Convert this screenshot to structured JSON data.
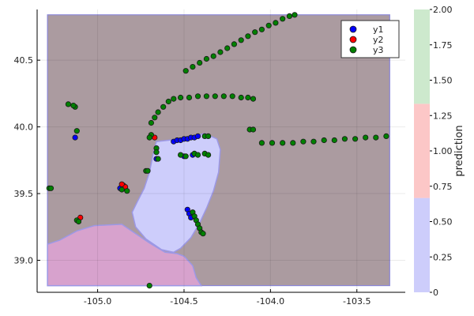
{
  "chart_data": {
    "type": "scatter",
    "title": "",
    "xlabel": "",
    "ylabel": "",
    "xlim": [
      -105.35,
      -103.22
    ],
    "ylim": [
      38.76,
      40.88
    ],
    "x_ticks": [
      {
        "v": -105.0,
        "label": "-105.0"
      },
      {
        "v": -104.5,
        "label": "-104.5"
      },
      {
        "v": -104.0,
        "label": "-104.0"
      },
      {
        "v": -103.5,
        "label": "-103.5"
      }
    ],
    "y_ticks": [
      {
        "v": 39.0,
        "label": "39.0"
      },
      {
        "v": 39.5,
        "label": "39.5"
      },
      {
        "v": 40.0,
        "label": "40.0"
      },
      {
        "v": 40.5,
        "label": "40.5"
      }
    ],
    "grid": true,
    "legend": "top-right",
    "decision_regions": {
      "bounds": {
        "x": [
          -105.29,
          -103.31
        ],
        "y": [
          38.81,
          40.84
        ]
      },
      "background_class": 1,
      "regions": [
        {
          "class": 0,
          "label": "blue region",
          "polygon": [
            [
              -104.66,
              39.89
            ],
            [
              -104.52,
              39.91
            ],
            [
              -104.38,
              39.95
            ],
            [
              -104.31,
              39.91
            ],
            [
              -104.29,
              39.83
            ],
            [
              -104.3,
              39.66
            ],
            [
              -104.33,
              39.52
            ],
            [
              -104.37,
              39.39
            ],
            [
              -104.41,
              39.28
            ],
            [
              -104.46,
              39.17
            ],
            [
              -104.52,
              39.09
            ],
            [
              -104.56,
              39.06
            ],
            [
              -104.63,
              39.08
            ],
            [
              -104.72,
              39.16
            ],
            [
              -104.78,
              39.25
            ],
            [
              -104.8,
              39.36
            ],
            [
              -104.77,
              39.44
            ],
            [
              -104.73,
              39.54
            ],
            [
              -104.7,
              39.66
            ],
            [
              -104.68,
              39.79
            ]
          ]
        },
        {
          "class": 2,
          "label": "pink region",
          "polygon": [
            [
              -105.29,
              38.81
            ],
            [
              -105.29,
              39.12
            ],
            [
              -105.22,
              39.15
            ],
            [
              -105.12,
              39.22
            ],
            [
              -105.02,
              39.26
            ],
            [
              -104.86,
              39.27
            ],
            [
              -104.78,
              39.2
            ],
            [
              -104.7,
              39.13
            ],
            [
              -104.61,
              39.06
            ],
            [
              -104.54,
              39.05
            ],
            [
              -104.5,
              39.03
            ],
            [
              -104.45,
              38.96
            ],
            [
              -104.43,
              38.87
            ],
            [
              -104.4,
              38.81
            ]
          ]
        }
      ]
    },
    "colors": {
      "y1": "#0000ff",
      "y2": "#ff0000",
      "y3": "#008000",
      "region0": "#cdcdfb",
      "region1": "#ab9ba0",
      "region2": "#d7a2cd"
    },
    "series": [
      {
        "name": "y1",
        "class": 0,
        "points": [
          [
            -104.56,
            39.89
          ],
          [
            -104.54,
            39.9
          ],
          [
            -104.52,
            39.9
          ],
          [
            -104.5,
            39.91
          ],
          [
            -104.48,
            39.91
          ],
          [
            -104.46,
            39.92
          ],
          [
            -104.44,
            39.92
          ],
          [
            -104.42,
            39.93
          ],
          [
            -104.66,
            39.76
          ],
          [
            -104.48,
            39.38
          ],
          [
            -104.47,
            39.35
          ],
          [
            -104.46,
            39.32
          ],
          [
            -104.87,
            39.54
          ],
          [
            -105.13,
            39.92
          ],
          [
            -104.45,
            39.79
          ],
          [
            -104.5,
            39.78
          ]
        ]
      },
      {
        "name": "y2",
        "class": 1,
        "points": [
          [
            -104.85,
            39.56
          ],
          [
            -104.84,
            39.55
          ],
          [
            -104.67,
            39.92
          ],
          [
            -105.1,
            39.32
          ],
          [
            -104.86,
            39.57
          ]
        ]
      },
      {
        "name": "y3",
        "class": 2,
        "points": [
          [
            -104.49,
            40.42
          ],
          [
            -104.45,
            40.45
          ],
          [
            -104.41,
            40.48
          ],
          [
            -104.37,
            40.51
          ],
          [
            -104.33,
            40.53
          ],
          [
            -104.29,
            40.56
          ],
          [
            -104.25,
            40.59
          ],
          [
            -104.21,
            40.62
          ],
          [
            -104.17,
            40.65
          ],
          [
            -104.13,
            40.68
          ],
          [
            -104.09,
            40.71
          ],
          [
            -104.05,
            40.73
          ],
          [
            -104.01,
            40.76
          ],
          [
            -103.97,
            40.78
          ],
          [
            -103.93,
            40.81
          ],
          [
            -103.89,
            40.83
          ],
          [
            -103.86,
            40.84
          ],
          [
            -104.69,
            40.03
          ],
          [
            -104.67,
            40.07
          ],
          [
            -104.65,
            40.11
          ],
          [
            -104.62,
            40.15
          ],
          [
            -104.59,
            40.19
          ],
          [
            -104.56,
            40.21
          ],
          [
            -104.52,
            40.22
          ],
          [
            -104.47,
            40.22
          ],
          [
            -104.42,
            40.23
          ],
          [
            -104.37,
            40.23
          ],
          [
            -104.32,
            40.23
          ],
          [
            -104.27,
            40.23
          ],
          [
            -104.22,
            40.23
          ],
          [
            -104.17,
            40.22
          ],
          [
            -104.13,
            40.22
          ],
          [
            -104.1,
            40.21
          ],
          [
            -104.05,
            39.88
          ],
          [
            -103.99,
            39.88
          ],
          [
            -103.93,
            39.88
          ],
          [
            -103.87,
            39.88
          ],
          [
            -103.81,
            39.89
          ],
          [
            -103.75,
            39.89
          ],
          [
            -103.69,
            39.9
          ],
          [
            -103.63,
            39.9
          ],
          [
            -103.57,
            39.91
          ],
          [
            -103.51,
            39.91
          ],
          [
            -103.45,
            39.92
          ],
          [
            -103.39,
            39.92
          ],
          [
            -103.33,
            39.93
          ],
          [
            -105.13,
            40.15
          ],
          [
            -105.17,
            40.17
          ],
          [
            -105.14,
            40.16
          ],
          [
            -105.12,
            39.97
          ],
          [
            -105.28,
            39.54
          ],
          [
            -105.27,
            39.54
          ],
          [
            -104.69,
            39.94
          ],
          [
            -104.7,
            39.92
          ],
          [
            -104.66,
            39.84
          ],
          [
            -104.66,
            39.81
          ],
          [
            -104.72,
            39.67
          ],
          [
            -104.71,
            39.67
          ],
          [
            -104.65,
            39.76
          ],
          [
            -104.52,
            39.79
          ],
          [
            -104.49,
            39.78
          ],
          [
            -104.44,
            39.8
          ],
          [
            -104.42,
            39.79
          ],
          [
            -104.38,
            39.8
          ],
          [
            -104.36,
            39.79
          ],
          [
            -104.38,
            39.93
          ],
          [
            -104.36,
            39.93
          ],
          [
            -104.45,
            39.36
          ],
          [
            -104.44,
            39.33
          ],
          [
            -104.43,
            39.3
          ],
          [
            -104.42,
            39.27
          ],
          [
            -104.41,
            39.24
          ],
          [
            -104.4,
            39.21
          ],
          [
            -104.39,
            39.2
          ],
          [
            -104.7,
            38.81
          ],
          [
            -104.12,
            39.98
          ],
          [
            -104.1,
            39.98
          ],
          [
            -104.86,
            39.53
          ],
          [
            -104.83,
            39.52
          ],
          [
            -105.12,
            39.3
          ],
          [
            -105.11,
            39.29
          ]
        ]
      }
    ],
    "colorbar": {
      "label": "prediction",
      "range": [
        0,
        2
      ],
      "ticks": [
        {
          "v": 0,
          "label": "0"
        },
        {
          "v": 0.25,
          "label": "0.25"
        },
        {
          "v": 0.5,
          "label": "0.50"
        },
        {
          "v": 0.75,
          "label": "0.75"
        },
        {
          "v": 1.0,
          "label": "1.00"
        },
        {
          "v": 1.25,
          "label": "1.25"
        },
        {
          "v": 1.5,
          "label": "1.50"
        },
        {
          "v": 1.75,
          "label": "1.75"
        },
        {
          "v": 2.0,
          "label": "2.00"
        }
      ],
      "bands": [
        {
          "from": 0,
          "to": 0.667,
          "color": "#cdcdfb"
        },
        {
          "from": 0.667,
          "to": 1.333,
          "color": "#fcc7c7"
        },
        {
          "from": 1.333,
          "to": 2.0,
          "color": "#cde9cd"
        }
      ]
    }
  }
}
